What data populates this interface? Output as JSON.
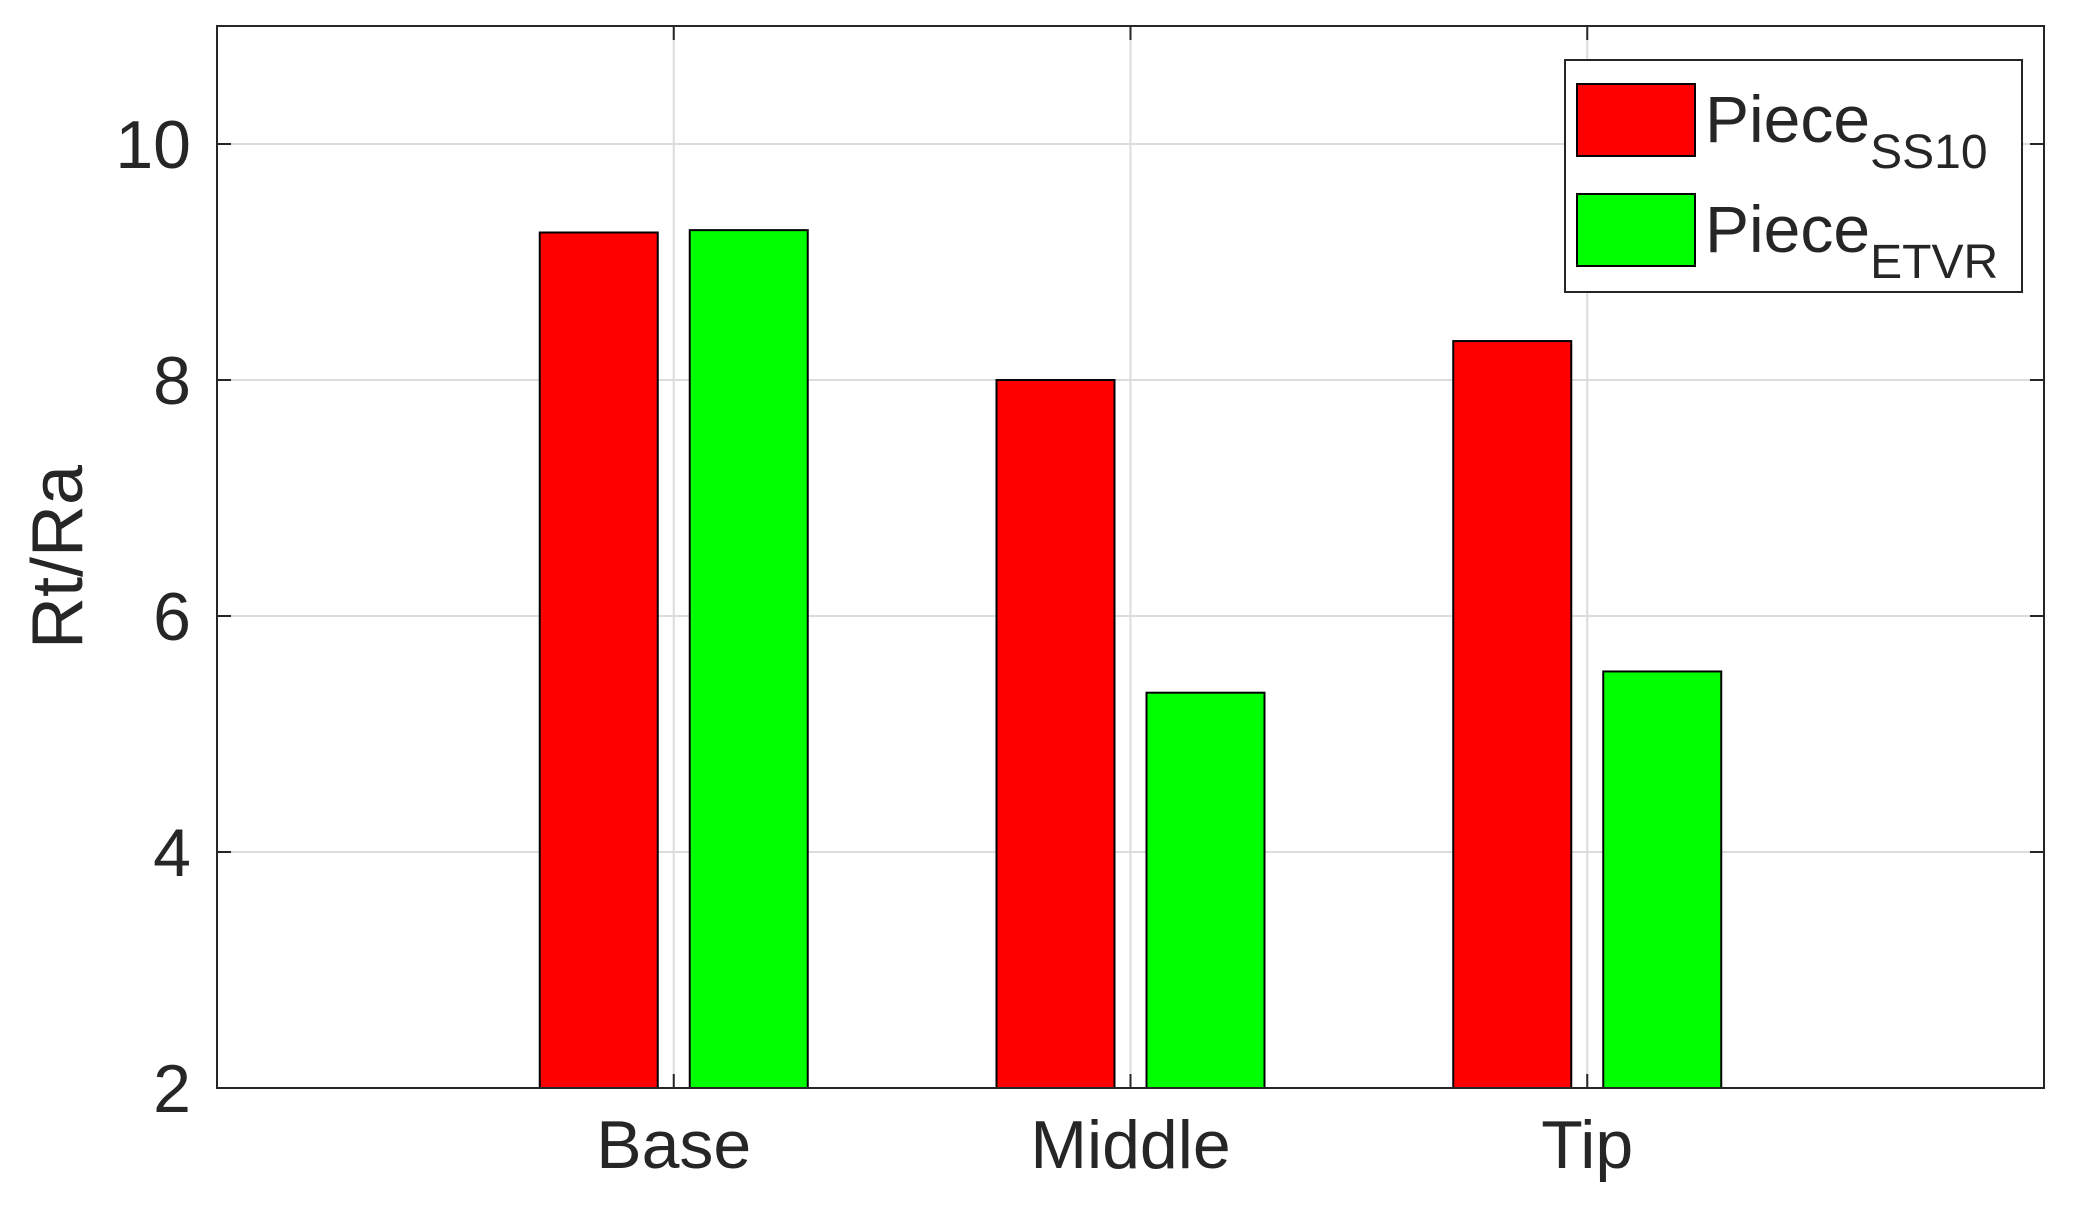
{
  "chart_data": {
    "type": "bar",
    "title": "",
    "xlabel": "",
    "ylabel": "Rt/Ra",
    "categories": [
      "Base",
      "Middle",
      "Tip"
    ],
    "ylim": [
      2,
      11
    ],
    "yticks": [
      2,
      4,
      6,
      8,
      10
    ],
    "ytick_labels": [
      "2",
      "4",
      "6",
      "8",
      "10"
    ],
    "grid": true,
    "legend_position": "top-right",
    "series": [
      {
        "name": "Piece",
        "name_subscript": "SS10",
        "color": "#ff0000",
        "values": [
          9.25,
          8.0,
          8.33
        ]
      },
      {
        "name": "Piece",
        "name_subscript": "ETVR",
        "color": "#00ff00",
        "values": [
          9.27,
          5.35,
          5.53
        ]
      }
    ]
  }
}
